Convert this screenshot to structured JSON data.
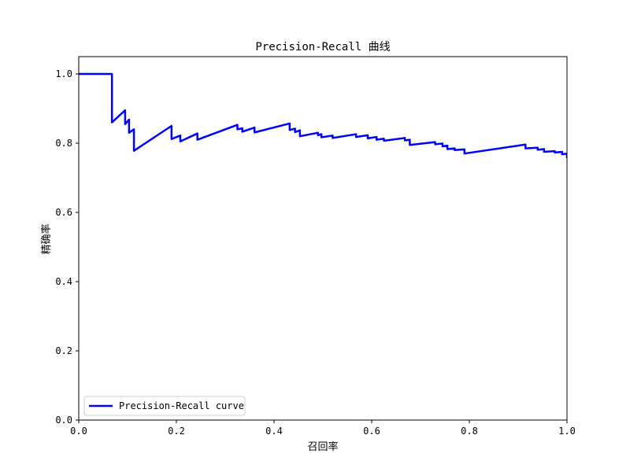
{
  "chart_data": {
    "type": "line",
    "title": "Precision-Recall 曲线",
    "xlabel": "召回率",
    "ylabel": "精确率",
    "xlim": [
      0.0,
      1.0
    ],
    "ylim": [
      0.0,
      1.05
    ],
    "xticks": [
      "0.0",
      "0.2",
      "0.4",
      "0.6",
      "0.8",
      "1.0"
    ],
    "yticks": [
      "0.0",
      "0.2",
      "0.4",
      "0.6",
      "0.8",
      "1.0"
    ],
    "grid": false,
    "legend": {
      "position": "lower-left",
      "entries": [
        "Precision-Recall curve"
      ]
    },
    "series": [
      {
        "name": "Precision-Recall curve",
        "color": "#0000ff",
        "points": [
          [
            0.0,
            1.0
          ],
          [
            0.068,
            1.0
          ],
          [
            0.068,
            0.86
          ],
          [
            0.095,
            0.895
          ],
          [
            0.095,
            0.855
          ],
          [
            0.103,
            0.868
          ],
          [
            0.103,
            0.83
          ],
          [
            0.113,
            0.84
          ],
          [
            0.113,
            0.778
          ],
          [
            0.19,
            0.85
          ],
          [
            0.19,
            0.812
          ],
          [
            0.208,
            0.822
          ],
          [
            0.208,
            0.805
          ],
          [
            0.243,
            0.828
          ],
          [
            0.243,
            0.81
          ],
          [
            0.325,
            0.853
          ],
          [
            0.325,
            0.84
          ],
          [
            0.335,
            0.843
          ],
          [
            0.335,
            0.833
          ],
          [
            0.36,
            0.845
          ],
          [
            0.36,
            0.831
          ],
          [
            0.432,
            0.857
          ],
          [
            0.432,
            0.838
          ],
          [
            0.443,
            0.842
          ],
          [
            0.443,
            0.832
          ],
          [
            0.453,
            0.837
          ],
          [
            0.453,
            0.82
          ],
          [
            0.49,
            0.83
          ],
          [
            0.49,
            0.823
          ],
          [
            0.497,
            0.826
          ],
          [
            0.497,
            0.817
          ],
          [
            0.52,
            0.822
          ],
          [
            0.52,
            0.815
          ],
          [
            0.568,
            0.826
          ],
          [
            0.568,
            0.818
          ],
          [
            0.592,
            0.823
          ],
          [
            0.592,
            0.814
          ],
          [
            0.61,
            0.818
          ],
          [
            0.61,
            0.81
          ],
          [
            0.625,
            0.813
          ],
          [
            0.625,
            0.807
          ],
          [
            0.668,
            0.815
          ],
          [
            0.668,
            0.808
          ],
          [
            0.678,
            0.81
          ],
          [
            0.678,
            0.795
          ],
          [
            0.73,
            0.803
          ],
          [
            0.73,
            0.797
          ],
          [
            0.745,
            0.799
          ],
          [
            0.745,
            0.791
          ],
          [
            0.755,
            0.793
          ],
          [
            0.755,
            0.783
          ],
          [
            0.77,
            0.785
          ],
          [
            0.77,
            0.78
          ],
          [
            0.79,
            0.782
          ],
          [
            0.79,
            0.77
          ],
          [
            0.915,
            0.796
          ],
          [
            0.915,
            0.785
          ],
          [
            0.94,
            0.787
          ],
          [
            0.94,
            0.781
          ],
          [
            0.953,
            0.783
          ],
          [
            0.953,
            0.775
          ],
          [
            0.975,
            0.777
          ],
          [
            0.975,
            0.773
          ],
          [
            0.99,
            0.775
          ],
          [
            0.99,
            0.768
          ],
          [
            1.0,
            0.77
          ],
          [
            1.0,
            0.757
          ]
        ]
      }
    ]
  }
}
